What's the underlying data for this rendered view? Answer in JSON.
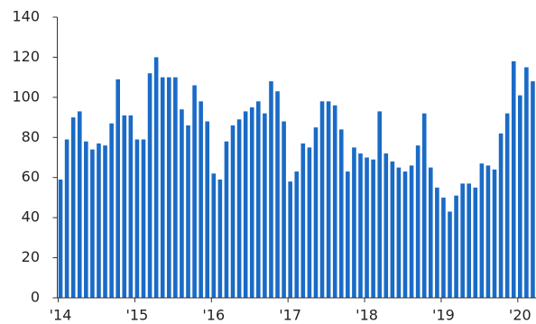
{
  "chart_data": {
    "type": "bar",
    "categories": [
      "'14",
      null,
      null,
      null,
      null,
      null,
      null,
      null,
      null,
      null,
      null,
      null,
      "'15",
      null,
      null,
      null,
      null,
      null,
      null,
      null,
      null,
      null,
      null,
      null,
      "'16",
      null,
      null,
      null,
      null,
      null,
      null,
      null,
      null,
      null,
      null,
      null,
      "'17",
      null,
      null,
      null,
      null,
      null,
      null,
      null,
      null,
      null,
      null,
      null,
      "'18",
      null,
      null,
      null,
      null,
      null,
      null,
      null,
      null,
      null,
      null,
      null,
      "'19",
      null,
      null,
      null,
      null,
      null,
      null,
      null,
      null,
      null,
      null,
      null,
      "'20",
      null,
      null
    ],
    "values": [
      59,
      79,
      90,
      93,
      78,
      74,
      77,
      76,
      87,
      109,
      91,
      91,
      79,
      79,
      112,
      120,
      110,
      110,
      110,
      94,
      86,
      106,
      98,
      88,
      62,
      59,
      78,
      86,
      89,
      93,
      95,
      98,
      92,
      108,
      103,
      88,
      58,
      63,
      77,
      75,
      85,
      98,
      98,
      96,
      84,
      63,
      75,
      72,
      70,
      69,
      93,
      72,
      68,
      65,
      63,
      66,
      76,
      92,
      65,
      55,
      50,
      43,
      51,
      57,
      57,
      55,
      67,
      66,
      64,
      82,
      92,
      118,
      101,
      115,
      108
    ],
    "color": "#1a6bc6",
    "ylim": [
      0,
      140
    ],
    "yticks": [
      0,
      20,
      40,
      60,
      80,
      100,
      120,
      140
    ]
  }
}
